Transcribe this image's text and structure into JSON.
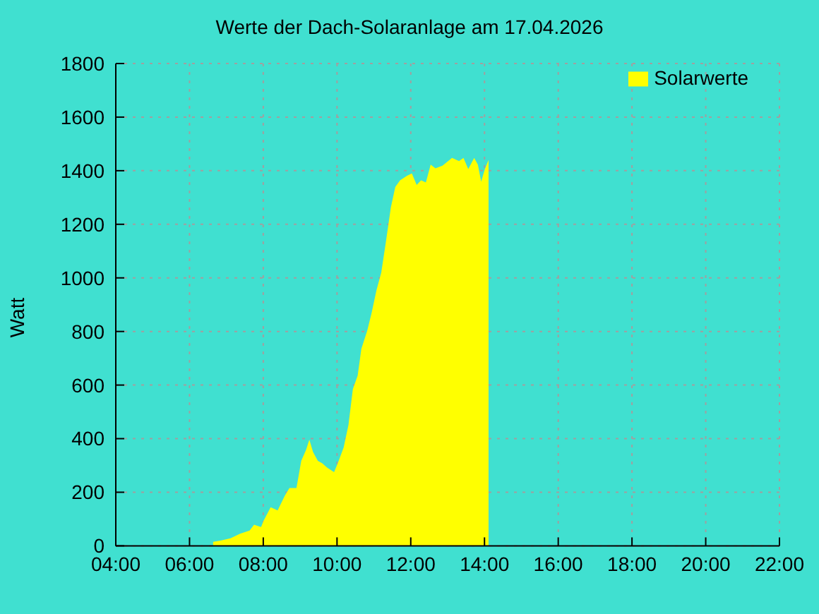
{
  "chart_data": {
    "type": "area",
    "title": "Werte der Dach-Solaranlage am 17.04.2026",
    "ylabel": "Watt",
    "x": [
      6.64,
      6.86,
      7.11,
      7.37,
      7.63,
      7.75,
      7.94,
      8.01,
      8.2,
      8.39,
      8.58,
      8.71,
      8.9,
      9.03,
      9.16,
      9.25,
      9.35,
      9.48,
      9.6,
      9.73,
      9.92,
      10.02,
      10.18,
      10.31,
      10.37,
      10.43,
      10.56,
      10.66,
      10.82,
      10.94,
      11.07,
      11.2,
      11.33,
      11.46,
      11.58,
      11.71,
      11.9,
      12.03,
      12.16,
      12.28,
      12.41,
      12.54,
      12.67,
      12.86,
      13.12,
      13.31,
      13.43,
      13.56,
      13.72,
      13.82,
      13.91,
      14.01,
      14.11
    ],
    "series": [
      {
        "name": "Solarwerte",
        "color": "#ffff00",
        "values": [
          15,
          20,
          28,
          45,
          57,
          79,
          70,
          94,
          144,
          132,
          186,
          216,
          216,
          317,
          358,
          396,
          350,
          317,
          308,
          292,
          275,
          308,
          367,
          451,
          518,
          585,
          635,
          735,
          803,
          870,
          954,
          1020,
          1138,
          1263,
          1339,
          1364,
          1381,
          1390,
          1347,
          1364,
          1356,
          1423,
          1409,
          1419,
          1448,
          1436,
          1448,
          1406,
          1448,
          1423,
          1359,
          1406,
          1440
        ]
      }
    ],
    "xlim": [
      4,
      22
    ],
    "xticks": [
      {
        "value": 4,
        "label": "04:00"
      },
      {
        "value": 6,
        "label": "06:00"
      },
      {
        "value": 8,
        "label": "08:00"
      },
      {
        "value": 10,
        "label": "10:00"
      },
      {
        "value": 12,
        "label": "12:00"
      },
      {
        "value": 14,
        "label": "14:00"
      },
      {
        "value": 16,
        "label": "16:00"
      },
      {
        "value": 18,
        "label": "18:00"
      },
      {
        "value": 20,
        "label": "20:00"
      },
      {
        "value": 22,
        "label": "22:00"
      }
    ],
    "ylim": [
      0,
      1800
    ],
    "yticks": [
      0,
      200,
      400,
      600,
      800,
      1000,
      1200,
      1400,
      1600,
      1800
    ],
    "grid": true,
    "legend": "top right"
  }
}
